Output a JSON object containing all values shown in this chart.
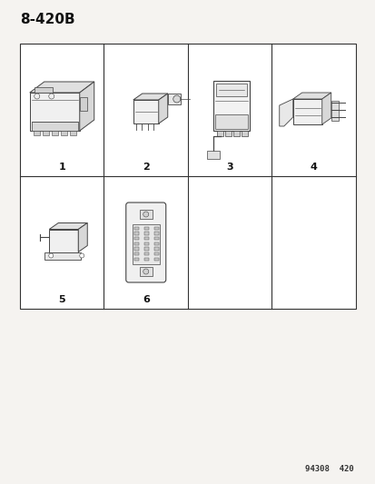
{
  "title": "8-420B",
  "footer": "94308  420",
  "bg_color": "#f5f3f0",
  "grid_color": "#333333",
  "grid_rows": 2,
  "grid_cols": 4,
  "items": [
    {
      "row": 0,
      "col": 0,
      "label": "1"
    },
    {
      "row": 0,
      "col": 1,
      "label": "2"
    },
    {
      "row": 0,
      "col": 2,
      "label": "3"
    },
    {
      "row": 0,
      "col": 3,
      "label": "4"
    },
    {
      "row": 1,
      "col": 0,
      "label": "5"
    },
    {
      "row": 1,
      "col": 1,
      "label": "6"
    },
    {
      "row": 1,
      "col": 2,
      "label": ""
    },
    {
      "row": 1,
      "col": 3,
      "label": ""
    }
  ],
  "title_fontsize": 11,
  "label_fontsize": 8,
  "footer_fontsize": 6.5
}
